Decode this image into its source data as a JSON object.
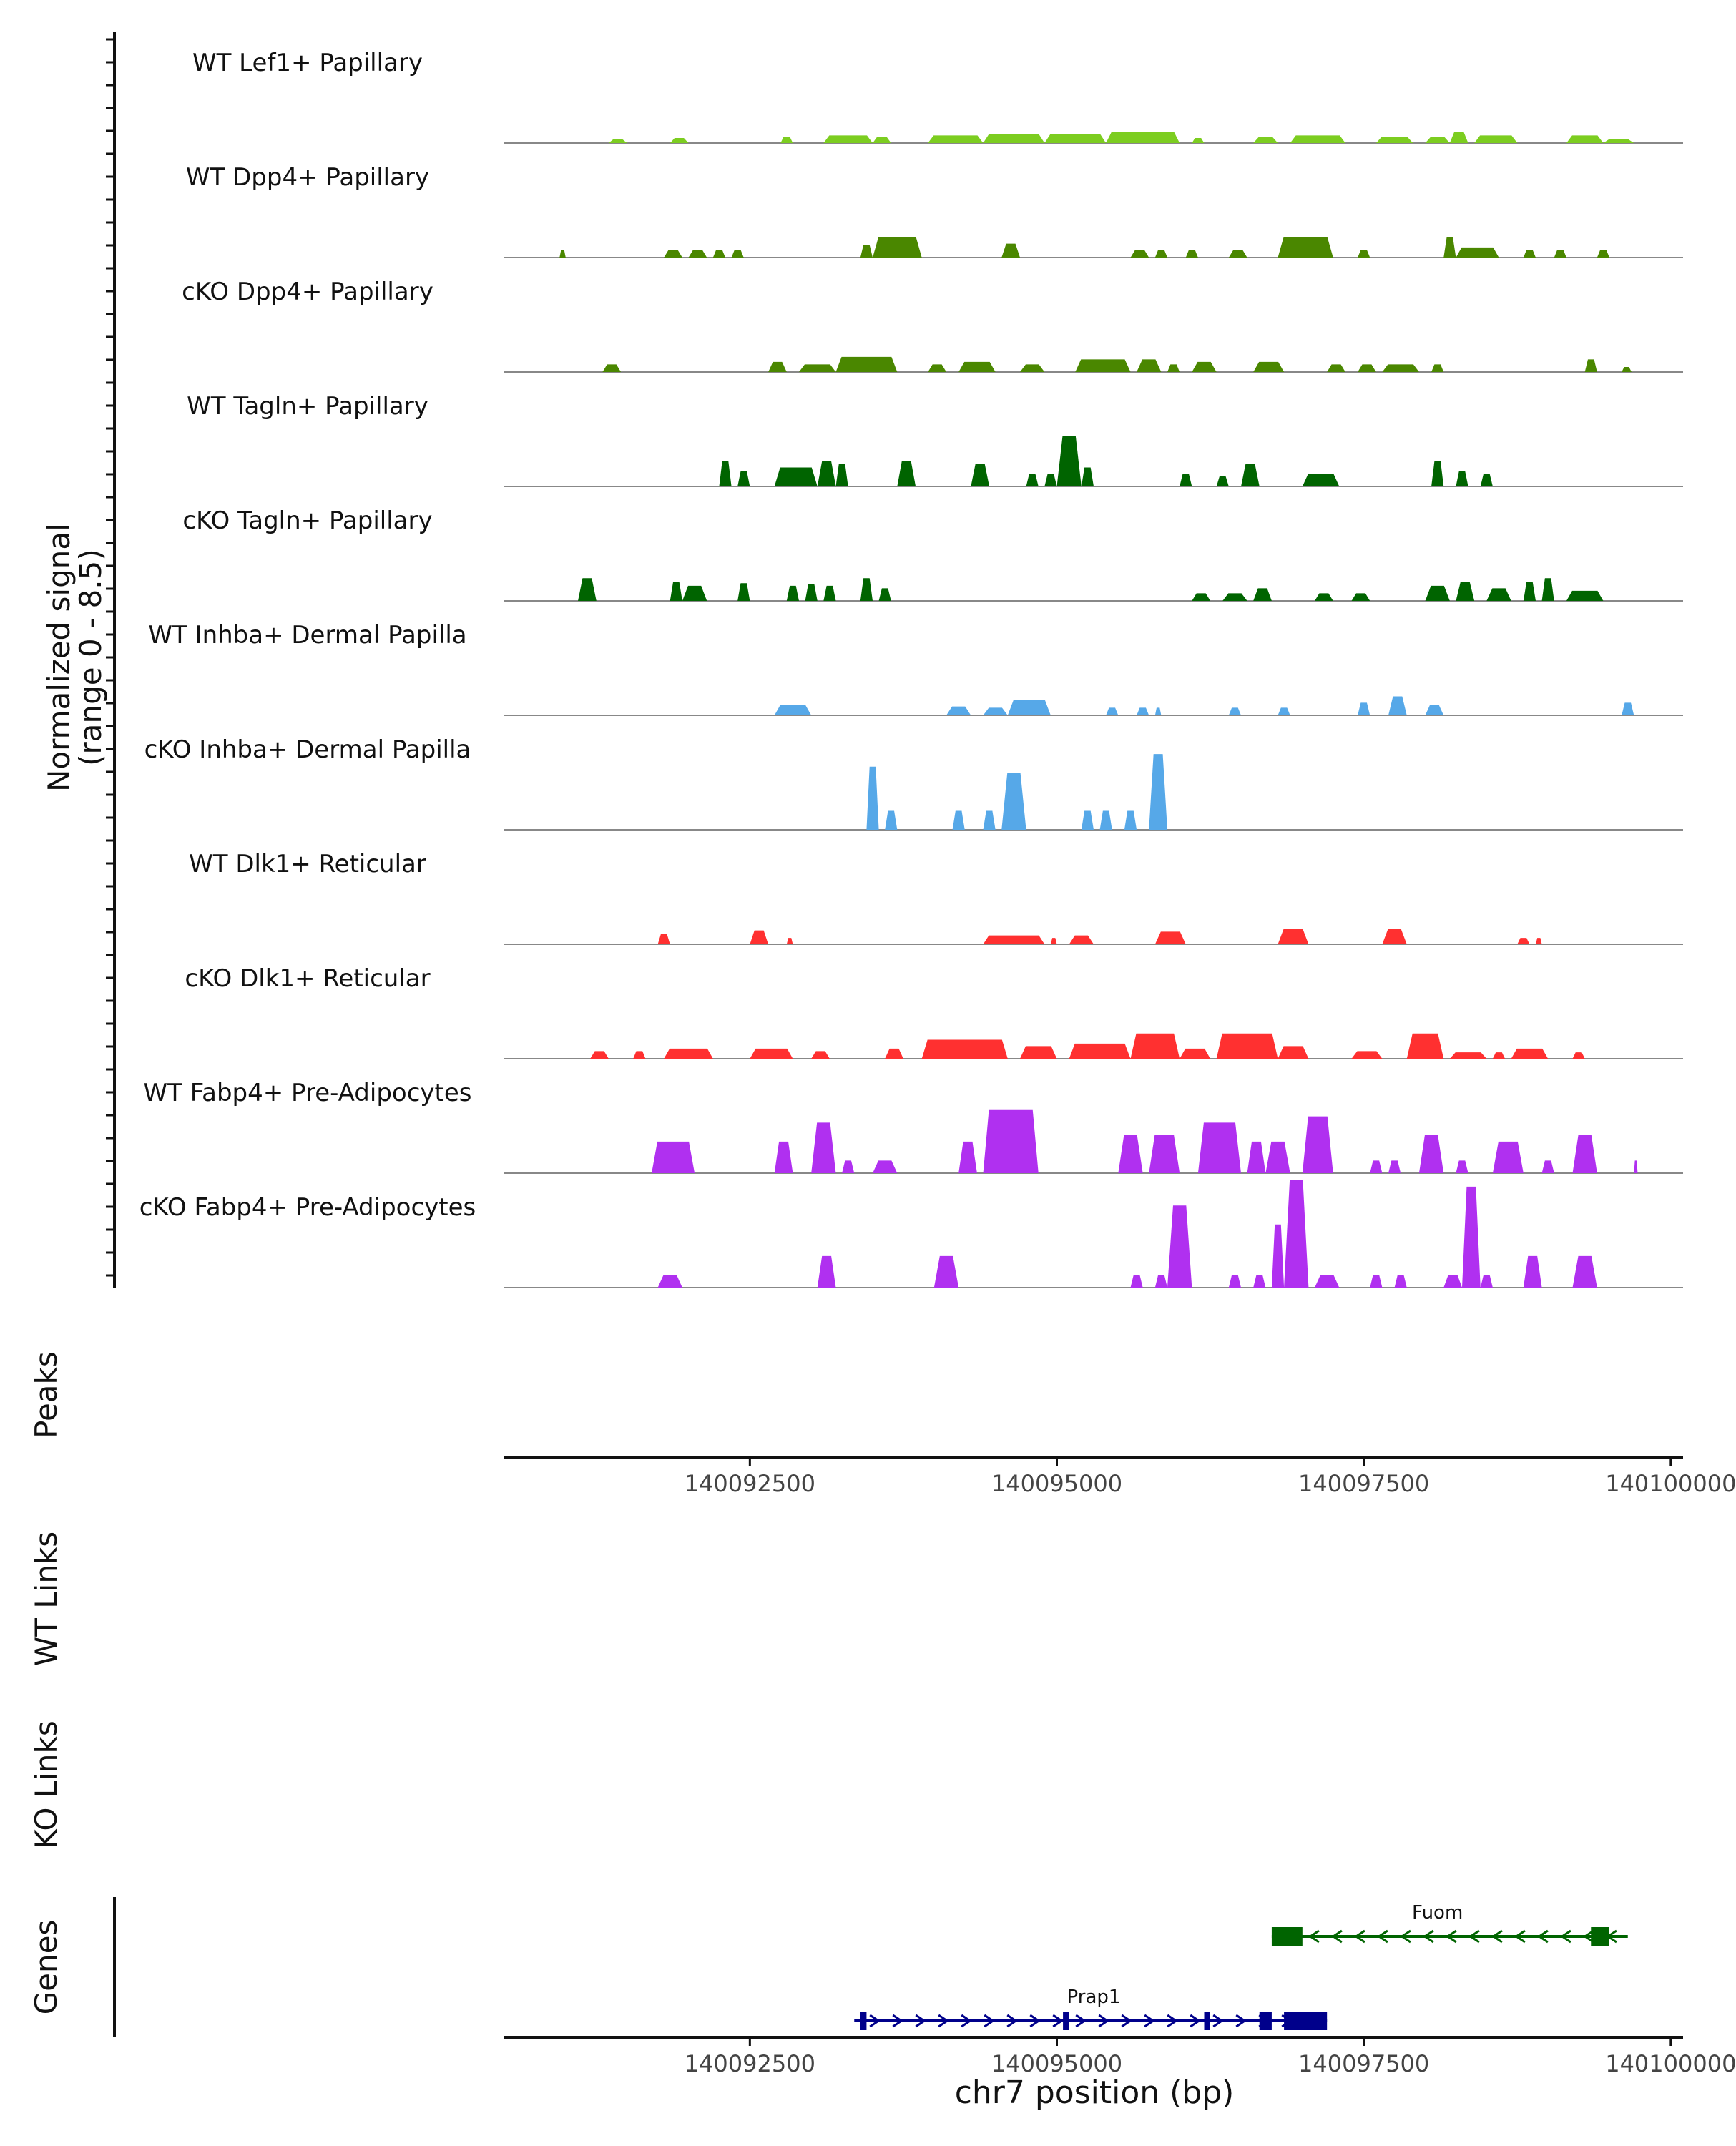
{
  "chart_data": {
    "type": "area",
    "title": "",
    "xlabel": "chr7 position (bp)",
    "ylabel": "Normalized signal",
    "ylabel_range": "(range 0 - 8.5)",
    "ylim": [
      0,
      8.5
    ],
    "xlim": [
      140090500,
      140100100
    ],
    "x_ticks": [
      140092500,
      140095000,
      140097500,
      140100000
    ],
    "x_tick_labels": [
      "140092500",
      "140095000",
      "140097500",
      "140100000"
    ],
    "tracks": [
      {
        "name": "WT Lef1+ Papillary",
        "color": "#7CCD20",
        "peaks": [
          [
            140091350,
            140091500,
            0.3
          ],
          [
            140091850,
            140092000,
            0.4
          ],
          [
            140092750,
            140092850,
            0.5
          ],
          [
            140093100,
            140093500,
            0.6
          ],
          [
            140093500,
            140093650,
            0.5
          ],
          [
            140093950,
            140094400,
            0.6
          ],
          [
            140094400,
            140094900,
            0.7
          ],
          [
            140094900,
            140095400,
            0.7
          ],
          [
            140095400,
            140096000,
            0.9
          ],
          [
            140096100,
            140096200,
            0.4
          ],
          [
            140096600,
            140096800,
            0.5
          ],
          [
            140096900,
            140097350,
            0.6
          ],
          [
            140097600,
            140097900,
            0.5
          ],
          [
            140098000,
            140098200,
            0.5
          ],
          [
            140098200,
            140098350,
            0.9
          ],
          [
            140098400,
            140098750,
            0.6
          ],
          [
            140099150,
            140099450,
            0.6
          ],
          [
            140099450,
            140099700,
            0.3
          ]
        ]
      },
      {
        "name": "WT Dpp4+ Papillary",
        "color": "#4A8700",
        "peaks": [
          [
            140090950,
            140091000,
            0.6
          ],
          [
            140091800,
            140091950,
            0.6
          ],
          [
            140092000,
            140092150,
            0.6
          ],
          [
            140092200,
            140092300,
            0.6
          ],
          [
            140092350,
            140092450,
            0.6
          ],
          [
            140093400,
            140093500,
            1.0
          ],
          [
            140093500,
            140093900,
            1.6
          ],
          [
            140094550,
            140094700,
            1.1
          ],
          [
            140095600,
            140095750,
            0.6
          ],
          [
            140095800,
            140095900,
            0.6
          ],
          [
            140096050,
            140096150,
            0.6
          ],
          [
            140096400,
            140096550,
            0.6
          ],
          [
            140096800,
            140097250,
            1.6
          ],
          [
            140097450,
            140097550,
            0.6
          ],
          [
            140098150,
            140098250,
            1.6
          ],
          [
            140098250,
            140098600,
            0.8
          ],
          [
            140098800,
            140098900,
            0.6
          ],
          [
            140099050,
            140099150,
            0.6
          ],
          [
            140099400,
            140099500,
            0.6
          ]
        ]
      },
      {
        "name": "cKO Dpp4+ Papillary",
        "color": "#4A8700",
        "peaks": [
          [
            140091300,
            140091450,
            0.6
          ],
          [
            140092650,
            140092800,
            0.8
          ],
          [
            140092900,
            140093200,
            0.6
          ],
          [
            140093200,
            140093700,
            1.2
          ],
          [
            140093950,
            140094100,
            0.6
          ],
          [
            140094200,
            140094500,
            0.8
          ],
          [
            140094700,
            140094900,
            0.6
          ],
          [
            140095150,
            140095600,
            1.0
          ],
          [
            140095650,
            140095850,
            1.0
          ],
          [
            140095900,
            140096000,
            0.6
          ],
          [
            140096100,
            140096300,
            0.8
          ],
          [
            140096600,
            140096850,
            0.8
          ],
          [
            140097200,
            140097350,
            0.6
          ],
          [
            140097450,
            140097600,
            0.6
          ],
          [
            140097650,
            140097950,
            0.6
          ],
          [
            140098050,
            140098150,
            0.6
          ],
          [
            140099300,
            140099400,
            1.0
          ],
          [
            140099600,
            140099680,
            0.4
          ]
        ]
      },
      {
        "name": "WT Tagln+ Papillary",
        "color": "#006400",
        "peaks": [
          [
            140092250,
            140092350,
            2.0
          ],
          [
            140092400,
            140092500,
            1.2
          ],
          [
            140092700,
            140093050,
            1.5
          ],
          [
            140093050,
            140093200,
            2.0
          ],
          [
            140093200,
            140093300,
            1.8
          ],
          [
            140093700,
            140093850,
            2.0
          ],
          [
            140094300,
            140094450,
            1.8
          ],
          [
            140094750,
            140094850,
            1.0
          ],
          [
            140094900,
            140095000,
            1.0
          ],
          [
            140095000,
            140095200,
            4.0
          ],
          [
            140095200,
            140095300,
            1.5
          ],
          [
            140096000,
            140096100,
            1.0
          ],
          [
            140096300,
            140096400,
            0.8
          ],
          [
            140096500,
            140096650,
            1.8
          ],
          [
            140097000,
            140097300,
            1.0
          ],
          [
            140098050,
            140098150,
            2.0
          ],
          [
            140098250,
            140098350,
            1.2
          ],
          [
            140098450,
            140098550,
            1.0
          ]
        ]
      },
      {
        "name": "cKO Tagln+ Papillary",
        "color": "#006400",
        "peaks": [
          [
            140091100,
            140091250,
            1.8
          ],
          [
            140091850,
            140091950,
            1.5
          ],
          [
            140091950,
            140092150,
            1.2
          ],
          [
            140092400,
            140092500,
            1.4
          ],
          [
            140092800,
            140092900,
            1.2
          ],
          [
            140092950,
            140093050,
            1.3
          ],
          [
            140093100,
            140093200,
            1.2
          ],
          [
            140093400,
            140093500,
            1.8
          ],
          [
            140093550,
            140093650,
            1.0
          ],
          [
            140096100,
            140096250,
            0.6
          ],
          [
            140096350,
            140096550,
            0.6
          ],
          [
            140096600,
            140096750,
            1.0
          ],
          [
            140097100,
            140097250,
            0.6
          ],
          [
            140097400,
            140097550,
            0.6
          ],
          [
            140098000,
            140098200,
            1.2
          ],
          [
            140098250,
            140098400,
            1.5
          ],
          [
            140098500,
            140098700,
            1.0
          ],
          [
            140098800,
            140098900,
            1.5
          ],
          [
            140098950,
            140099050,
            1.8
          ],
          [
            140099150,
            140099450,
            0.8
          ]
        ]
      },
      {
        "name": "WT Inhba+ Dermal Papilla",
        "color": "#56A8E8",
        "peaks": [
          [
            140092700,
            140093000,
            0.8
          ],
          [
            140094100,
            140094300,
            0.7
          ],
          [
            140094400,
            140094600,
            0.6
          ],
          [
            140094600,
            140094950,
            1.2
          ],
          [
            140095400,
            140095500,
            0.6
          ],
          [
            140095650,
            140095750,
            0.6
          ],
          [
            140095800,
            140095850,
            0.6
          ],
          [
            140096400,
            140096500,
            0.6
          ],
          [
            140096800,
            140096900,
            0.6
          ],
          [
            140097450,
            140097550,
            1.0
          ],
          [
            140097700,
            140097850,
            1.5
          ],
          [
            140098000,
            140098150,
            0.8
          ],
          [
            140099600,
            140099700,
            1.0
          ]
        ]
      },
      {
        "name": "cKO Inhba+ Dermal Papilla",
        "color": "#56A8E8",
        "peaks": [
          [
            140093450,
            140093550,
            5.0
          ],
          [
            140093600,
            140093700,
            1.5
          ],
          [
            140094150,
            140094250,
            1.5
          ],
          [
            140094400,
            140094500,
            1.5
          ],
          [
            140094550,
            140094750,
            4.5
          ],
          [
            140095200,
            140095300,
            1.5
          ],
          [
            140095350,
            140095450,
            1.5
          ],
          [
            140095550,
            140095650,
            1.5
          ],
          [
            140095750,
            140095900,
            6.0
          ]
        ]
      },
      {
        "name": "WT Dlk1+ Reticular",
        "color": "#FF3030",
        "peaks": [
          [
            140091750,
            140091850,
            0.8
          ],
          [
            140092500,
            140092650,
            1.1
          ],
          [
            140092800,
            140092850,
            0.5
          ],
          [
            140094400,
            140094900,
            0.7
          ],
          [
            140094950,
            140095000,
            0.5
          ],
          [
            140095100,
            140095300,
            0.7
          ],
          [
            140095800,
            140096050,
            1.0
          ],
          [
            140096800,
            140097050,
            1.2
          ],
          [
            140097650,
            140097850,
            1.2
          ],
          [
            140098750,
            140098850,
            0.5
          ],
          [
            140098900,
            140098950,
            0.5
          ]
        ]
      },
      {
        "name": "cKO Dlk1+ Reticular",
        "color": "#FF3030",
        "peaks": [
          [
            140091200,
            140091350,
            0.6
          ],
          [
            140091550,
            140091650,
            0.6
          ],
          [
            140091800,
            140092200,
            0.8
          ],
          [
            140092500,
            140092850,
            0.8
          ],
          [
            140093000,
            140093150,
            0.6
          ],
          [
            140093600,
            140093750,
            0.8
          ],
          [
            140093900,
            140094600,
            1.5
          ],
          [
            140094700,
            140095000,
            1.0
          ],
          [
            140095100,
            140095600,
            1.2
          ],
          [
            140095600,
            140096000,
            2.0
          ],
          [
            140096000,
            140096250,
            0.8
          ],
          [
            140096300,
            140096800,
            2.0
          ],
          [
            140096800,
            140097050,
            1.0
          ],
          [
            140097400,
            140097650,
            0.6
          ],
          [
            140097850,
            140098150,
            2.0
          ],
          [
            140098200,
            140098500,
            0.5
          ],
          [
            140098550,
            140098650,
            0.5
          ],
          [
            140098700,
            140099000,
            0.8
          ],
          [
            140099200,
            140099300,
            0.5
          ]
        ]
      },
      {
        "name": "WT Fabp4+ Pre-Adipocytes",
        "color": "#B030F0",
        "peaks": [
          [
            140091700,
            140092050,
            2.5
          ],
          [
            140092700,
            140092850,
            2.5
          ],
          [
            140093000,
            140093200,
            4.0
          ],
          [
            140093250,
            140093350,
            1.0
          ],
          [
            140093500,
            140093700,
            1.0
          ],
          [
            140094200,
            140094350,
            2.5
          ],
          [
            140094400,
            140094850,
            5.0
          ],
          [
            140095500,
            140095700,
            3.0
          ],
          [
            140095750,
            140096000,
            3.0
          ],
          [
            140096150,
            140096500,
            4.0
          ],
          [
            140096550,
            140096700,
            2.5
          ],
          [
            140096700,
            140096900,
            2.5
          ],
          [
            140097000,
            140097250,
            4.5
          ],
          [
            140097550,
            140097650,
            1.0
          ],
          [
            140097700,
            140097800,
            1.0
          ],
          [
            140097950,
            140098150,
            3.0
          ],
          [
            140098250,
            140098350,
            1.0
          ],
          [
            140098550,
            140098800,
            2.5
          ],
          [
            140098950,
            140099050,
            1.0
          ],
          [
            140099200,
            140099400,
            3.0
          ],
          [
            140099700,
            140099730,
            1.0
          ]
        ]
      },
      {
        "name": "cKO Fabp4+ Pre-Adipocytes",
        "color": "#B030F0",
        "peaks": [
          [
            140091750,
            140091950,
            1.0
          ],
          [
            140093050,
            140093200,
            2.5
          ],
          [
            140094000,
            140094200,
            2.5
          ],
          [
            140095600,
            140095700,
            1.0
          ],
          [
            140095800,
            140095900,
            1.0
          ],
          [
            140095900,
            140096100,
            6.5
          ],
          [
            140096400,
            140096500,
            1.0
          ],
          [
            140096600,
            140096700,
            1.0
          ],
          [
            140096750,
            140096850,
            5.0
          ],
          [
            140096850,
            140097050,
            8.5
          ],
          [
            140097100,
            140097300,
            1.0
          ],
          [
            140097550,
            140097650,
            1.0
          ],
          [
            140097750,
            140097850,
            1.0
          ],
          [
            140098150,
            140098300,
            1.0
          ],
          [
            140098300,
            140098450,
            8.0
          ],
          [
            140098450,
            140098550,
            1.0
          ],
          [
            140098800,
            140098950,
            2.5
          ],
          [
            140099200,
            140099400,
            2.5
          ]
        ]
      }
    ],
    "panels": {
      "peaks": "Peaks",
      "wt_links": "WT Links",
      "ko_links": "KO Links",
      "genes": "Genes"
    },
    "genes": [
      {
        "name": "Fuom",
        "strand": "-",
        "color": "#006400",
        "start": 140096750,
        "end": 140099650,
        "exons": [
          [
            140096750,
            140097000
          ],
          [
            140099350,
            140099500
          ]
        ]
      },
      {
        "name": "Prap1",
        "strand": "+",
        "color": "#00008B",
        "start": 140093350,
        "end": 140097200,
        "exons": [
          [
            140093400,
            140093450
          ],
          [
            140095050,
            140095100
          ],
          [
            140096200,
            140096240
          ],
          [
            140096650,
            140096750
          ],
          [
            140096850,
            140097200
          ]
        ]
      }
    ]
  }
}
